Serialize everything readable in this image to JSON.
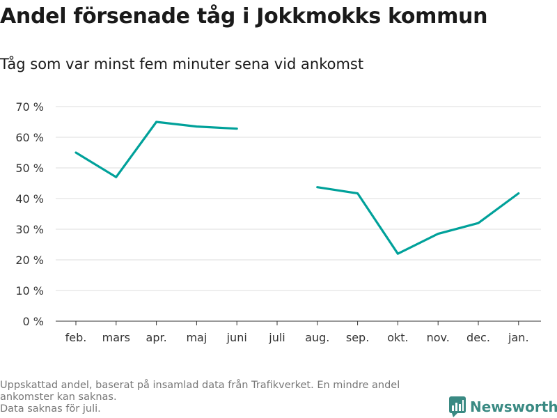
{
  "title": "Andel försenade tåg i Jokkmokks kommun",
  "subtitle": "Tåg som var minst fem minuter sena vid ankomst",
  "footnote": {
    "lines": [
      "Uppskattad andel, baserat på insamlad data från Trafikverket. En mindre andel ankomster kan saknas.",
      "Data saknas för juli."
    ]
  },
  "brand": {
    "name": "Newsworthy",
    "icon": "newsworthy-logo-icon",
    "color": "#3a8a83"
  },
  "chart_data": {
    "type": "line",
    "categories": [
      "feb.",
      "mars",
      "apr.",
      "maj",
      "juni",
      "juli",
      "aug.",
      "sep.",
      "okt.",
      "nov.",
      "dec.",
      "jan."
    ],
    "series": [
      {
        "values": [
          55,
          47,
          65,
          63.5,
          62.8,
          null,
          43.7,
          41.7,
          22,
          28.5,
          32,
          41.7
        ],
        "color": "#00a19a"
      }
    ],
    "ylim": [
      0,
      70
    ],
    "yticks": [
      0,
      10,
      20,
      30,
      40,
      50,
      60,
      70
    ],
    "ytick_labels": [
      "0 %",
      "10 %",
      "20 %",
      "30 %",
      "40 %",
      "50 %",
      "60 %",
      "70 %"
    ],
    "grid": true,
    "legend": "none"
  }
}
